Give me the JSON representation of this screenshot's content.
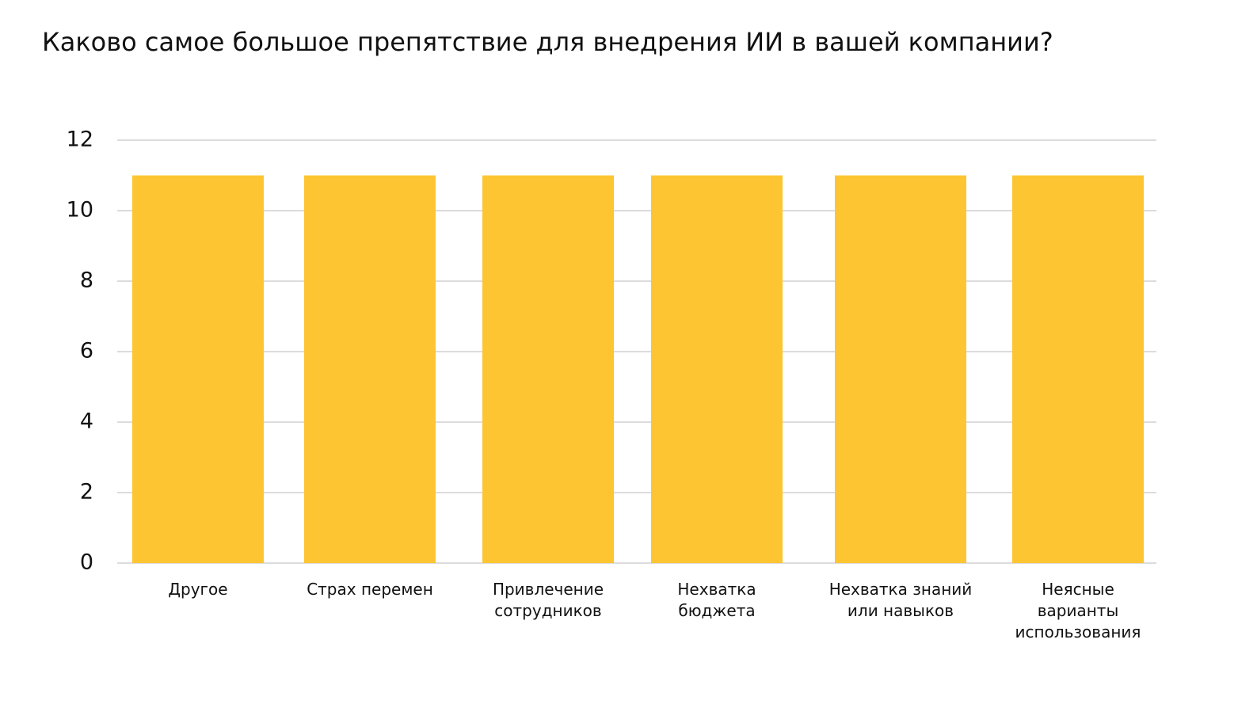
{
  "chart_data": {
    "type": "bar",
    "title": "Каково самое большое препятствие для внедрения ИИ в вашей компании?",
    "categories": [
      "Другое",
      "Страх перемен",
      "Привлечение сотрудников",
      "Нехватка бюджета",
      "Нехватка знаний или навыков",
      "Неясные варианты использования"
    ],
    "values": [
      11,
      11,
      11,
      11,
      11,
      11
    ],
    "color": "#fdc532",
    "ylim": [
      0,
      12
    ],
    "yticks": [
      0,
      2,
      4,
      6,
      8,
      10,
      12
    ],
    "grid": true
  }
}
